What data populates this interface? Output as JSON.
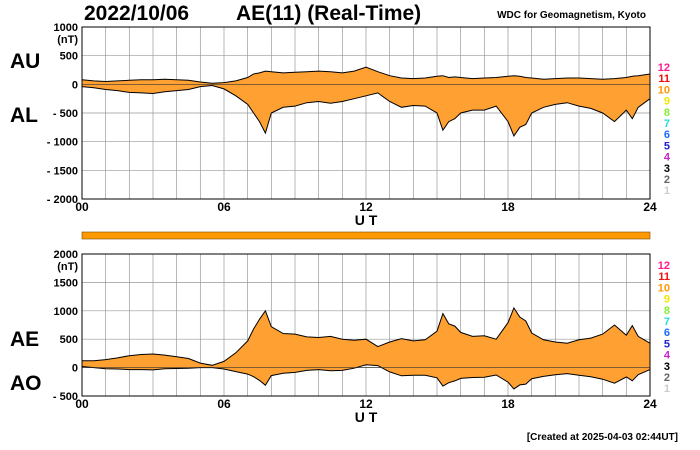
{
  "header": {
    "date": "2022/10/06",
    "title": "AE(11) (Real-Time)",
    "source": "WDC for Geomagnetism, Kyoto",
    "created": "[Created at 2025-04-03 02:44UT]"
  },
  "colors": {
    "fill": "#ffa033",
    "grid": "#999999",
    "axis": "#000000"
  },
  "station_counts": [
    {
      "label": "12",
      "color": "#ff1a8c"
    },
    {
      "label": "11",
      "color": "#ee1111"
    },
    {
      "label": "10",
      "color": "#ff9900"
    },
    {
      "label": "9",
      "color": "#f2e600"
    },
    {
      "label": "8",
      "color": "#88ee33"
    },
    {
      "label": "7",
      "color": "#22dddd"
    },
    {
      "label": "6",
      "color": "#1a6cff"
    },
    {
      "label": "5",
      "color": "#2222cc"
    },
    {
      "label": "4",
      "color": "#cc22cc"
    },
    {
      "label": "3",
      "color": "#000000"
    },
    {
      "label": "2",
      "color": "#666666"
    },
    {
      "label": "1",
      "color": "#cccccc"
    }
  ],
  "chart_data": [
    {
      "type": "area",
      "panel": "AU/AL",
      "upper_label": "AU",
      "lower_label": "AL",
      "unit": "(nT)",
      "xlabel": "U T",
      "xlim": [
        0,
        24
      ],
      "ylim": [
        -2000,
        1000
      ],
      "x_ticks": [
        {
          "v": 0,
          "label": "00"
        },
        {
          "v": 6,
          "label": "06"
        },
        {
          "v": 12,
          "label": "12"
        },
        {
          "v": 18,
          "label": "18"
        },
        {
          "v": 24,
          "label": "24"
        }
      ],
      "y_ticks": [
        {
          "v": 1000,
          "label": "1000"
        },
        {
          "v": 500,
          "label": "500"
        },
        {
          "v": 0,
          "label": "0"
        },
        {
          "v": -500,
          "label": "- 500"
        },
        {
          "v": -1000,
          "label": "- 1000"
        },
        {
          "v": -1500,
          "label": "- 1500"
        },
        {
          "v": -2000,
          "label": "- 2000"
        }
      ],
      "x": [
        0,
        0.5,
        1,
        1.5,
        2,
        2.5,
        3,
        3.5,
        4,
        4.5,
        5,
        5.5,
        6,
        6.5,
        7,
        7.25,
        7.5,
        7.75,
        8,
        8.5,
        9,
        9.5,
        10,
        10.5,
        11,
        11.5,
        12,
        12.5,
        13,
        13.5,
        14,
        14.5,
        15,
        15.25,
        15.5,
        15.75,
        16,
        16.5,
        17,
        17.5,
        18,
        18.25,
        18.5,
        18.75,
        19,
        19.5,
        20,
        20.5,
        21,
        21.5,
        22,
        22.5,
        23,
        23.25,
        23.5,
        24
      ],
      "series": [
        {
          "name": "AU",
          "values": [
            80,
            60,
            50,
            60,
            70,
            80,
            80,
            90,
            80,
            70,
            40,
            20,
            30,
            60,
            120,
            180,
            200,
            230,
            220,
            200,
            210,
            220,
            230,
            220,
            200,
            230,
            300,
            220,
            150,
            110,
            100,
            110,
            140,
            150,
            120,
            130,
            120,
            100,
            110,
            120,
            140,
            150,
            140,
            120,
            110,
            90,
            100,
            110,
            110,
            100,
            90,
            100,
            120,
            140,
            150,
            180
          ]
        },
        {
          "name": "AL",
          "values": [
            -40,
            -60,
            -90,
            -110,
            -140,
            -150,
            -160,
            -130,
            -110,
            -90,
            -40,
            -20,
            -80,
            -200,
            -350,
            -500,
            -650,
            -850,
            -500,
            -400,
            -380,
            -320,
            -300,
            -330,
            -300,
            -250,
            -200,
            -150,
            -300,
            -400,
            -370,
            -380,
            -500,
            -800,
            -650,
            -600,
            -500,
            -450,
            -450,
            -380,
            -650,
            -900,
            -750,
            -700,
            -500,
            -400,
            -350,
            -320,
            -380,
            -420,
            -500,
            -650,
            -450,
            -600,
            -400,
            -250
          ]
        }
      ]
    },
    {
      "type": "area",
      "panel": "AE/AO",
      "upper_label": "AE",
      "lower_label": "AO",
      "unit": "(nT)",
      "xlabel": "U T",
      "xlim": [
        0,
        24
      ],
      "ylim": [
        -500,
        2000
      ],
      "x_ticks": [
        {
          "v": 0,
          "label": "00"
        },
        {
          "v": 6,
          "label": "06"
        },
        {
          "v": 12,
          "label": "12"
        },
        {
          "v": 18,
          "label": "18"
        },
        {
          "v": 24,
          "label": "24"
        }
      ],
      "y_ticks": [
        {
          "v": 2000,
          "label": "2000"
        },
        {
          "v": 1500,
          "label": "1500"
        },
        {
          "v": 1000,
          "label": "1000"
        },
        {
          "v": 500,
          "label": "500"
        },
        {
          "v": 0,
          "label": "0"
        },
        {
          "v": -500,
          "label": "- 500"
        }
      ],
      "x": [
        0,
        0.5,
        1,
        1.5,
        2,
        2.5,
        3,
        3.5,
        4,
        4.5,
        5,
        5.5,
        6,
        6.5,
        7,
        7.25,
        7.5,
        7.75,
        8,
        8.5,
        9,
        9.5,
        10,
        10.5,
        11,
        11.5,
        12,
        12.5,
        13,
        13.5,
        14,
        14.5,
        15,
        15.25,
        15.5,
        15.75,
        16,
        16.5,
        17,
        17.5,
        18,
        18.25,
        18.5,
        18.75,
        19,
        19.5,
        20,
        20.5,
        21,
        21.5,
        22,
        22.5,
        23,
        23.25,
        23.5,
        24
      ],
      "series": [
        {
          "name": "AE",
          "values": [
            120,
            120,
            140,
            170,
            210,
            230,
            240,
            220,
            190,
            160,
            80,
            40,
            110,
            260,
            470,
            680,
            850,
            1000,
            720,
            600,
            590,
            540,
            530,
            550,
            500,
            480,
            500,
            370,
            450,
            510,
            470,
            490,
            640,
            950,
            770,
            730,
            620,
            550,
            560,
            500,
            790,
            1050,
            890,
            820,
            610,
            490,
            450,
            430,
            490,
            520,
            590,
            750,
            570,
            740,
            550,
            430
          ]
        },
        {
          "name": "AO",
          "values": [
            20,
            0,
            -20,
            -25,
            -35,
            -35,
            -40,
            -20,
            -15,
            -10,
            0,
            0,
            -25,
            -70,
            -115,
            -160,
            -225,
            -310,
            -140,
            -100,
            -85,
            -50,
            -35,
            -55,
            -50,
            -10,
            50,
            35,
            -75,
            -145,
            -135,
            -135,
            -180,
            -325,
            -265,
            -235,
            -190,
            -175,
            -170,
            -130,
            -255,
            -375,
            -305,
            -290,
            -195,
            -155,
            -125,
            -105,
            -135,
            -160,
            -205,
            -275,
            -165,
            -230,
            -125,
            -35
          ]
        }
      ]
    }
  ],
  "activity_bar": {
    "color": "#ff9900"
  }
}
